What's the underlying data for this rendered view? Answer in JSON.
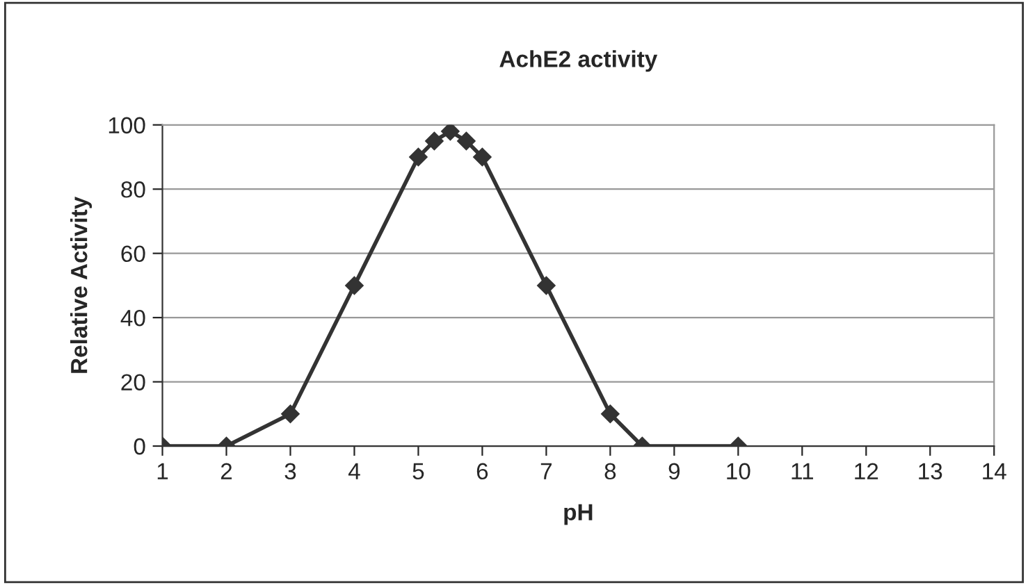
{
  "chart_data": {
    "type": "line",
    "title": "AchE2 activity",
    "xlabel": "pH",
    "ylabel": "Relative Activity",
    "x": [
      1,
      2,
      3,
      4,
      5,
      5.25,
      5.5,
      5.75,
      6,
      7,
      8,
      8.5,
      10
    ],
    "series": [
      {
        "color": "#333333",
        "values": [
          0,
          0,
          10,
          50,
          90,
          95,
          98,
          95,
          90,
          50,
          10,
          0,
          0
        ]
      }
    ],
    "xlim": [
      1,
      14
    ],
    "xticks": [
      1,
      2,
      3,
      4,
      5,
      6,
      7,
      8,
      9,
      10,
      11,
      12,
      13,
      14
    ],
    "ylim": [
      0,
      100
    ],
    "yticks": [
      0,
      20,
      40,
      60,
      80,
      100
    ],
    "grid": "y",
    "legend": false,
    "marker": "diamond",
    "line_style": "solid"
  }
}
